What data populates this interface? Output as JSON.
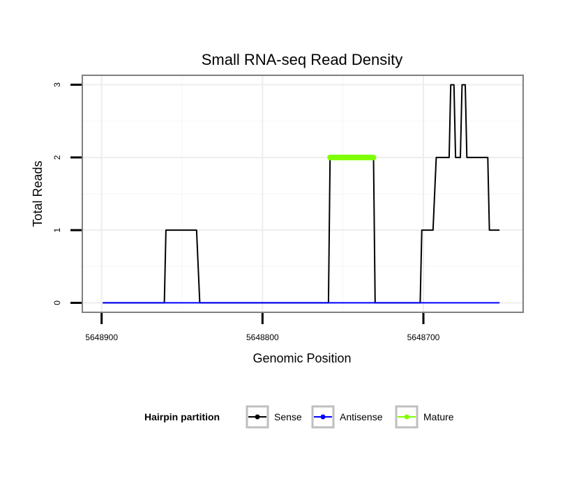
{
  "chart_data": {
    "type": "line",
    "title": "Small RNA-seq Read Density",
    "xlabel": "Genomic Position",
    "ylabel": "Total Reads",
    "xlim": [
      5648912,
      5648638
    ],
    "ylim": [
      -0.13,
      3.13
    ],
    "x_reversed": true,
    "grid": true,
    "x_ticks": [
      5648900,
      5648800,
      5648700
    ],
    "x_tick_labels": [
      "5648900",
      "5648800",
      "5648700"
    ],
    "y_ticks": [
      0,
      1,
      2,
      3
    ],
    "y_tick_labels": [
      "0",
      "1",
      "2",
      "3"
    ],
    "legend": {
      "title": "Hairpin partition",
      "position": "bottom",
      "entries": [
        "Sense",
        "Antisense",
        "Mature"
      ]
    },
    "series": [
      {
        "name": "Sense",
        "color": "#000000",
        "points": [
          [
            5648899,
            0
          ],
          [
            5648861,
            0
          ],
          [
            5648860,
            1
          ],
          [
            5648841,
            1
          ],
          [
            5648839,
            0
          ],
          [
            5648759,
            0
          ],
          [
            5648758,
            2
          ],
          [
            5648731,
            2
          ],
          [
            5648730,
            0
          ],
          [
            5648702,
            0
          ],
          [
            5648701,
            1
          ],
          [
            5648694,
            1
          ],
          [
            5648692,
            2
          ],
          [
            5648684,
            2
          ],
          [
            5648683,
            3
          ],
          [
            5648681,
            3
          ],
          [
            5648680,
            2
          ],
          [
            5648677,
            2
          ],
          [
            5648676,
            3
          ],
          [
            5648674,
            3
          ],
          [
            5648673,
            2
          ],
          [
            5648660,
            2
          ],
          [
            5648659,
            1
          ],
          [
            5648653,
            1
          ]
        ]
      },
      {
        "name": "Antisense",
        "color": "#0000ff",
        "points": [
          [
            5648899,
            0
          ],
          [
            5648653,
            0
          ]
        ]
      },
      {
        "name": "Mature",
        "color": "#7fff00",
        "points": [
          [
            5648758,
            2
          ],
          [
            5648731,
            2
          ]
        ]
      }
    ]
  }
}
